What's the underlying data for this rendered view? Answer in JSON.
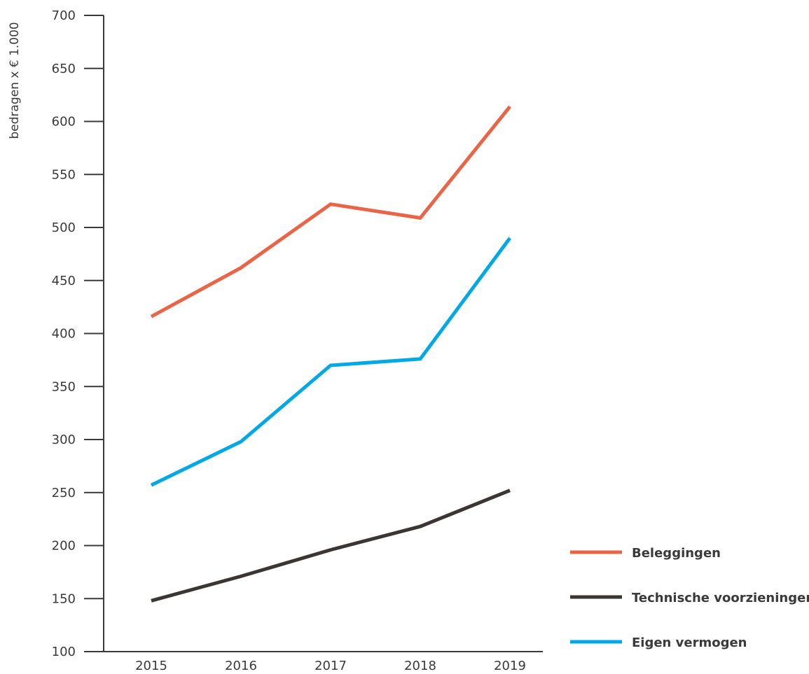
{
  "chart_data": {
    "type": "line",
    "title": "",
    "xlabel": "",
    "ylabel": "bedragen x € 1.000",
    "categories": [
      "2015",
      "2016",
      "2017",
      "2018",
      "2019"
    ],
    "ylim": [
      100,
      700
    ],
    "yticks": [
      100,
      150,
      200,
      250,
      300,
      350,
      400,
      450,
      500,
      550,
      600,
      650,
      700
    ],
    "grid": false,
    "legend_position": "bottom-right",
    "series": [
      {
        "name": "Beleggingen",
        "color": "#ea6547",
        "values": [
          416,
          462,
          522,
          509,
          614
        ]
      },
      {
        "name": "Technische voorzieningen",
        "color": "#3b3534",
        "values": [
          148,
          171,
          196,
          218,
          252
        ]
      },
      {
        "name": "Eigen vermogen",
        "color": "#00a9e3",
        "values": [
          257,
          298,
          370,
          376,
          490
        ]
      }
    ]
  }
}
